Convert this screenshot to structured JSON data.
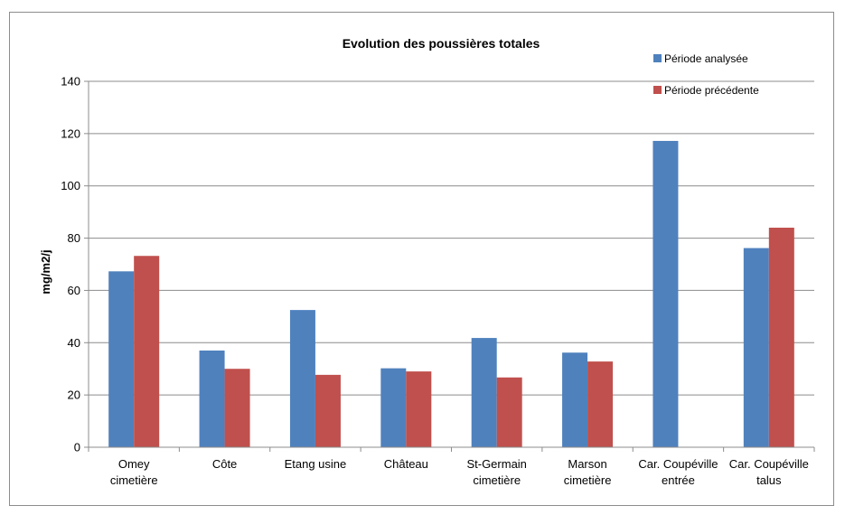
{
  "chart_data": {
    "type": "bar",
    "title": "Evolution des poussières totales",
    "xlabel": "",
    "ylabel": "mg/m2/j",
    "ylim": [
      0,
      140
    ],
    "yticks": [
      "0",
      "20",
      "40",
      "60",
      "80",
      "100",
      "120",
      "140"
    ],
    "ytick_values": [
      0,
      20,
      40,
      60,
      80,
      100,
      120,
      140
    ],
    "grid": true,
    "legend_position": "top-right",
    "categories": [
      [
        "Omey",
        "cimetière"
      ],
      [
        "Côte"
      ],
      [
        "Etang usine"
      ],
      [
        "Château"
      ],
      [
        "St-Germain",
        "cimetière"
      ],
      [
        "Marson",
        "cimetière"
      ],
      [
        "Car. Coupéville",
        "entrée"
      ],
      [
        "Car. Coupéville",
        "talus"
      ]
    ],
    "series": [
      {
        "name": "Période analysée",
        "color": "#4f81bd",
        "values": [
          67.3,
          37,
          52.5,
          30.2,
          41.8,
          36.2,
          117.2,
          76.2
        ]
      },
      {
        "name": "Période précédente",
        "color": "#c0504d",
        "values": [
          73.2,
          30,
          27.7,
          29,
          26.7,
          32.8,
          null,
          84
        ]
      }
    ]
  }
}
